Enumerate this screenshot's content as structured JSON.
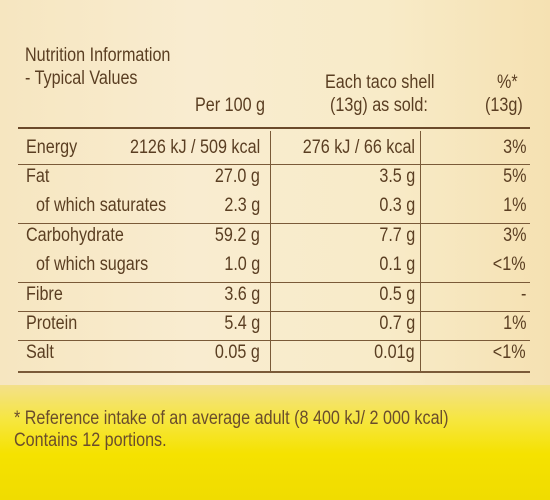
{
  "header": {
    "title_line1": "Nutrition Information",
    "title_line2": "- Typical Values",
    "col_per100": "Per 100 g",
    "col_each_line1": "Each taco shell",
    "col_each_line2": "(13g) as sold:",
    "col_pct_line1": "%*",
    "col_pct_line2": "(13g)"
  },
  "rows": [
    {
      "name": "Energy",
      "per100": "2126 kJ / 509 kcal",
      "each": "276 kJ / 66 kcal",
      "pct": "3%"
    },
    {
      "name": "Fat",
      "per100": "27.0 g",
      "each": "3.5 g",
      "pct": "5%"
    },
    {
      "name": "of which saturates",
      "per100": "2.3 g",
      "each": "0.3 g",
      "pct": "1%"
    },
    {
      "name": "Carbohydrate",
      "per100": "59.2 g",
      "each": "7.7 g",
      "pct": "3%"
    },
    {
      "name": "of which sugars",
      "per100": "1.0 g",
      "each": "0.1 g",
      "pct": "<1%"
    },
    {
      "name": "Fibre",
      "per100": "3.6 g",
      "each": "0.5 g",
      "pct": "-"
    },
    {
      "name": "Protein",
      "per100": "5.4 g",
      "each": "0.7 g",
      "pct": "1%"
    },
    {
      "name": "Salt",
      "per100": "0.05 g",
      "each": "0.01g",
      "pct": "<1%"
    }
  ],
  "footnote": {
    "line1": "* Reference intake of an average adult (8 400 kJ/ 2 000 kcal)",
    "line2": "Contains 12 portions."
  }
}
